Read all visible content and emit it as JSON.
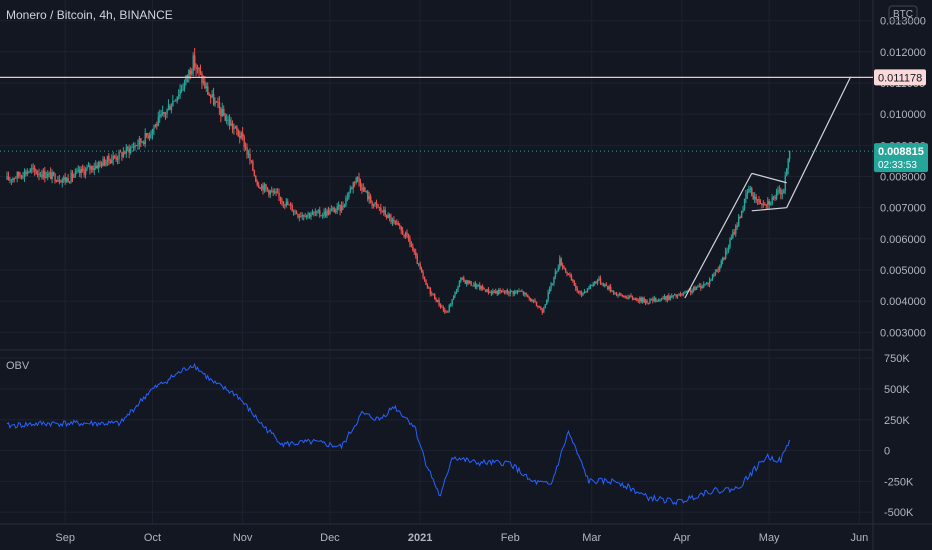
{
  "header": {
    "symbol": "Monero / Bitcoin, 4h, BINANCE",
    "currency_badge": "BTC"
  },
  "indicator": {
    "label": "OBV"
  },
  "colors": {
    "background": "#131722",
    "grid": "#1e2230",
    "text": "#b2b5be",
    "up": "#26a69a",
    "down": "#ef5350",
    "hline": "#f4c2c2",
    "hline_tag_bg": "#fbd9d9",
    "hline_tag_text": "#131722",
    "trend": "#d1d4dc",
    "obv": "#2962ff",
    "price_tag_bg": "#26a69a"
  },
  "chart_data": [
    {
      "type": "candlestick",
      "title": "Monero / Bitcoin, 4h, BINANCE",
      "xlabel": "",
      "ylabel": "",
      "x_ticks": [
        "Sep",
        "Oct",
        "Nov",
        "Dec",
        "2021",
        "Feb",
        "Mar",
        "Apr",
        "May",
        "Jun"
      ],
      "y_ticks": [
        "0.003000",
        "0.004000",
        "0.005000",
        "0.006000",
        "0.007000",
        "0.008000",
        "0.009000",
        "0.010000",
        "0.011000",
        "0.012000",
        "0.013000"
      ],
      "ylim": [
        0.0025,
        0.0135
      ],
      "grid": true,
      "series_points": [
        {
          "date": "2020-08-12",
          "close": 0.0079
        },
        {
          "date": "2020-08-20",
          "close": 0.0082
        },
        {
          "date": "2020-09-01",
          "close": 0.0079
        },
        {
          "date": "2020-09-10",
          "close": 0.0083
        },
        {
          "date": "2020-09-20",
          "close": 0.0087
        },
        {
          "date": "2020-09-28",
          "close": 0.0092
        },
        {
          "date": "2020-10-05",
          "close": 0.01
        },
        {
          "date": "2020-10-12",
          "close": 0.011
        },
        {
          "date": "2020-10-15",
          "close": 0.0117
        },
        {
          "date": "2020-10-20",
          "close": 0.0107
        },
        {
          "date": "2020-10-25",
          "close": 0.01
        },
        {
          "date": "2020-11-01",
          "close": 0.0092
        },
        {
          "date": "2020-11-06",
          "close": 0.0078
        },
        {
          "date": "2020-11-14",
          "close": 0.0073
        },
        {
          "date": "2020-11-20",
          "close": 0.0068
        },
        {
          "date": "2020-11-28",
          "close": 0.0068
        },
        {
          "date": "2020-12-05",
          "close": 0.007
        },
        {
          "date": "2020-12-10",
          "close": 0.008
        },
        {
          "date": "2020-12-15",
          "close": 0.0072
        },
        {
          "date": "2020-12-20",
          "close": 0.0068
        },
        {
          "date": "2020-12-28",
          "close": 0.006
        },
        {
          "date": "2021-01-03",
          "close": 0.0045
        },
        {
          "date": "2021-01-10",
          "close": 0.0036
        },
        {
          "date": "2021-01-15",
          "close": 0.0047
        },
        {
          "date": "2021-01-25",
          "close": 0.0043
        },
        {
          "date": "2021-02-05",
          "close": 0.0043
        },
        {
          "date": "2021-02-12",
          "close": 0.0037
        },
        {
          "date": "2021-02-18",
          "close": 0.0053
        },
        {
          "date": "2021-02-25",
          "close": 0.0042
        },
        {
          "date": "2021-03-03",
          "close": 0.0047
        },
        {
          "date": "2021-03-10",
          "close": 0.0042
        },
        {
          "date": "2021-03-20",
          "close": 0.004
        },
        {
          "date": "2021-04-01",
          "close": 0.0042
        },
        {
          "date": "2021-04-10",
          "close": 0.0046
        },
        {
          "date": "2021-04-15",
          "close": 0.0053
        },
        {
          "date": "2021-04-20",
          "close": 0.0065
        },
        {
          "date": "2021-04-24",
          "close": 0.0076
        },
        {
          "date": "2021-04-27",
          "close": 0.0072
        },
        {
          "date": "2021-05-01",
          "close": 0.0072
        },
        {
          "date": "2021-05-06",
          "close": 0.0076
        },
        {
          "date": "2021-05-08",
          "close": 0.008815
        }
      ],
      "horizontal_line": {
        "value": 0.011178,
        "label": "0.011178"
      },
      "last_price": {
        "value": 0.008815,
        "label": "0.008815",
        "countdown": "02:33:53"
      },
      "trendlines": [
        {
          "from": {
            "date": "2021-04-02",
            "value": 0.0041
          },
          "to": {
            "date": "2021-04-25",
            "value": 0.0081
          }
        },
        {
          "from": {
            "date": "2021-04-25",
            "value": 0.0081
          },
          "to": {
            "date": "2021-05-07",
            "value": 0.0078
          }
        },
        {
          "from": {
            "date": "2021-04-25",
            "value": 0.0069
          },
          "to": {
            "date": "2021-05-07",
            "value": 0.007
          }
        },
        {
          "from": {
            "date": "2021-05-07",
            "value": 0.007
          },
          "to": {
            "date": "2021-05-29",
            "value": 0.0112
          }
        }
      ]
    },
    {
      "type": "line",
      "title": "OBV",
      "y_ticks": [
        "750K",
        "500K",
        "250K",
        "0",
        "-250K",
        "-500K"
      ],
      "ylim": [
        -580000,
        800000
      ],
      "series": [
        {
          "name": "OBV",
          "points": [
            {
              "date": "2020-08-12",
              "value": 200000
            },
            {
              "date": "2020-08-25",
              "value": 220000
            },
            {
              "date": "2020-09-05",
              "value": 220000
            },
            {
              "date": "2020-09-20",
              "value": 220000
            },
            {
              "date": "2020-09-30",
              "value": 480000
            },
            {
              "date": "2020-10-08",
              "value": 600000
            },
            {
              "date": "2020-10-15",
              "value": 700000
            },
            {
              "date": "2020-10-22",
              "value": 550000
            },
            {
              "date": "2020-10-30",
              "value": 450000
            },
            {
              "date": "2020-11-08",
              "value": 200000
            },
            {
              "date": "2020-11-15",
              "value": 50000
            },
            {
              "date": "2020-11-25",
              "value": 70000
            },
            {
              "date": "2020-12-05",
              "value": 30000
            },
            {
              "date": "2020-12-12",
              "value": 300000
            },
            {
              "date": "2020-12-18",
              "value": 250000
            },
            {
              "date": "2020-12-23",
              "value": 360000
            },
            {
              "date": "2020-12-30",
              "value": 200000
            },
            {
              "date": "2021-01-03",
              "value": -100000
            },
            {
              "date": "2021-01-08",
              "value": -380000
            },
            {
              "date": "2021-01-12",
              "value": -50000
            },
            {
              "date": "2021-01-20",
              "value": -100000
            },
            {
              "date": "2021-02-01",
              "value": -100000
            },
            {
              "date": "2021-02-08",
              "value": -250000
            },
            {
              "date": "2021-02-15",
              "value": -280000
            },
            {
              "date": "2021-02-21",
              "value": 150000
            },
            {
              "date": "2021-02-28",
              "value": -250000
            },
            {
              "date": "2021-03-10",
              "value": -250000
            },
            {
              "date": "2021-03-20",
              "value": -380000
            },
            {
              "date": "2021-03-31",
              "value": -420000
            },
            {
              "date": "2021-04-10",
              "value": -330000
            },
            {
              "date": "2021-04-20",
              "value": -310000
            },
            {
              "date": "2021-04-30",
              "value": -50000
            },
            {
              "date": "2021-05-05",
              "value": -80000
            },
            {
              "date": "2021-05-08",
              "value": 80000
            }
          ]
        }
      ]
    }
  ]
}
